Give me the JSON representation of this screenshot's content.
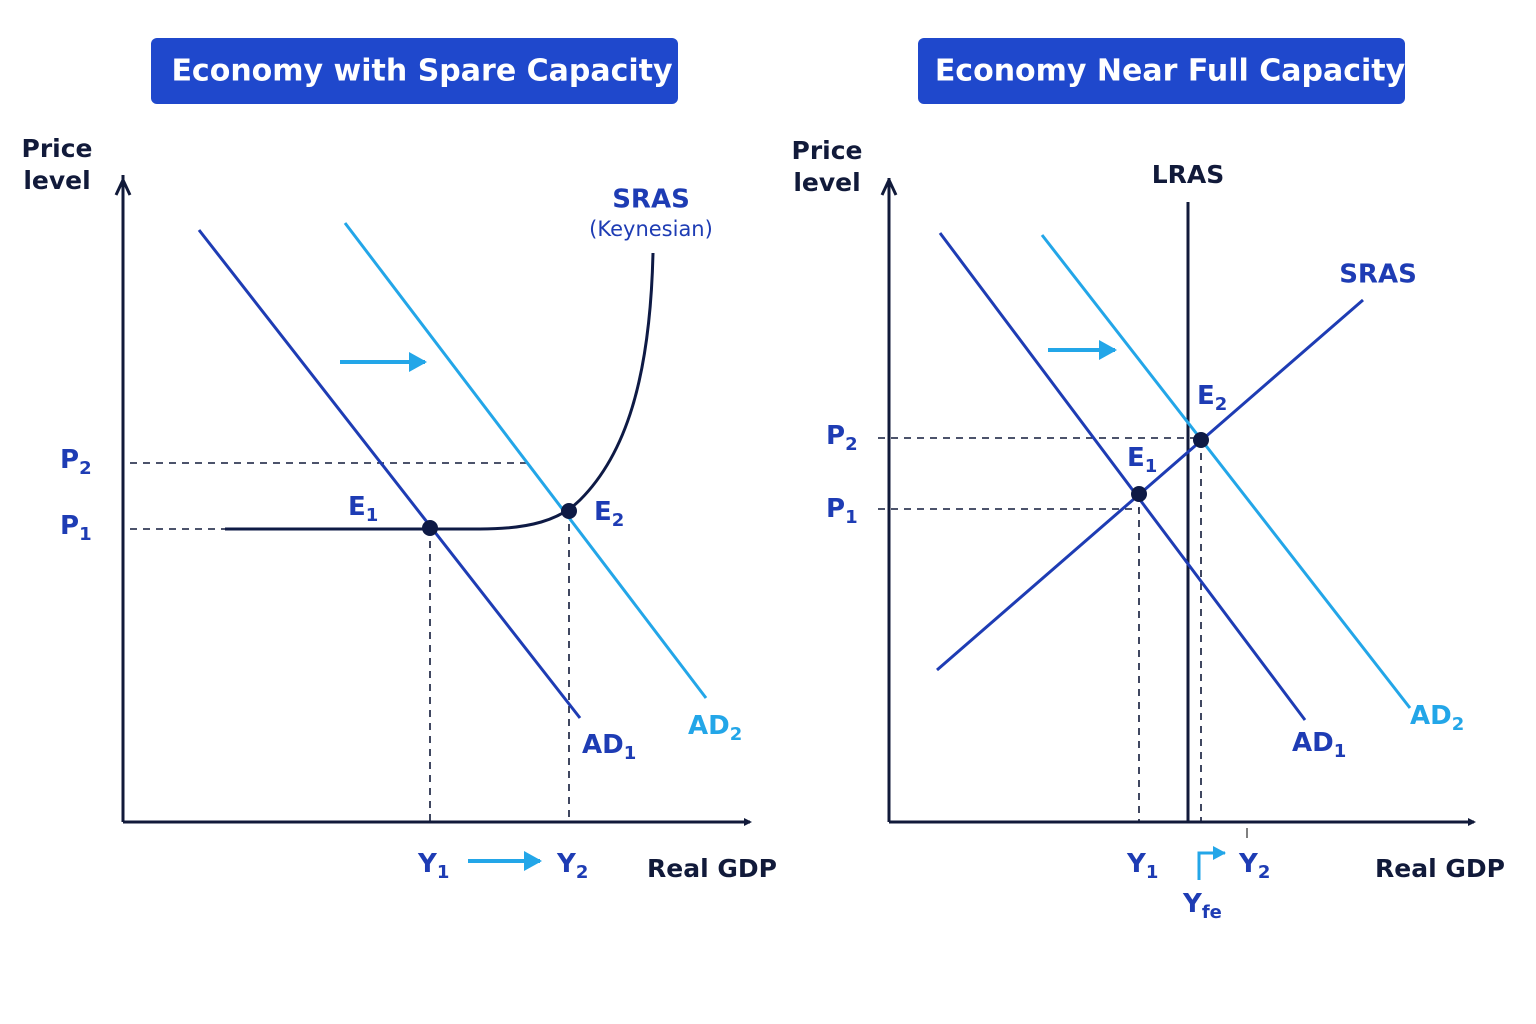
{
  "panels": [
    {
      "title": "Economy with Spare Capacity",
      "y_label": [
        "Price",
        "level"
      ],
      "x_label": "Real GDP",
      "sras": {
        "name": "SRAS",
        "note": "(Keynesian)"
      },
      "ad1": {
        "main": "AD",
        "sub": "1"
      },
      "ad2": {
        "main": "AD",
        "sub": "2"
      },
      "e1": {
        "main": "E",
        "sub": "1"
      },
      "e2": {
        "main": "E",
        "sub": "2"
      },
      "p1": {
        "main": "P",
        "sub": "1"
      },
      "p2": {
        "main": "P",
        "sub": "2"
      },
      "y1": {
        "main": "Y",
        "sub": "1"
      },
      "y2": {
        "main": "Y",
        "sub": "2"
      }
    },
    {
      "title": "Economy Near Full Capacity",
      "y_label": [
        "Price",
        "level"
      ],
      "x_label": "Real GDP",
      "lras": "LRAS",
      "sras": "SRAS",
      "ad1": {
        "main": "AD",
        "sub": "1"
      },
      "ad2": {
        "main": "AD",
        "sub": "2"
      },
      "e1": {
        "main": "E",
        "sub": "1"
      },
      "e2": {
        "main": "E",
        "sub": "2"
      },
      "p1": {
        "main": "P",
        "sub": "1"
      },
      "p2": {
        "main": "P",
        "sub": "2"
      },
      "y1": {
        "main": "Y",
        "sub": "1"
      },
      "y2": {
        "main": "Y",
        "sub": "2"
      },
      "yfe": {
        "main": "Y",
        "sub": "fe"
      }
    }
  ]
}
